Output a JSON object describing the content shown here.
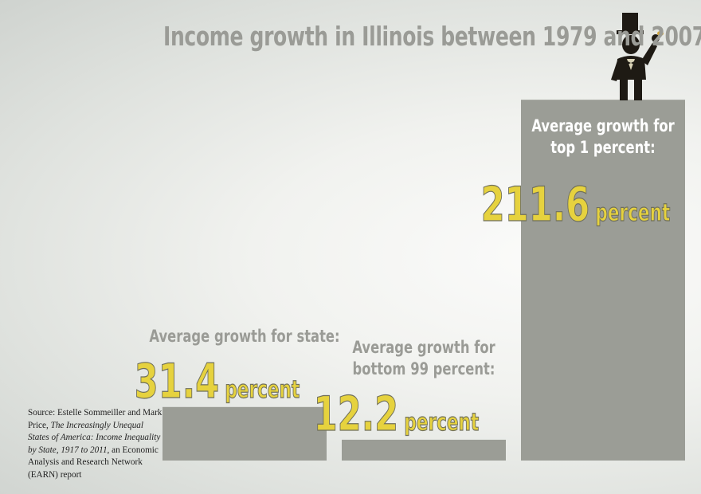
{
  "chart_data": {
    "type": "bar",
    "title": "Income growth in Illinois between 1979 and 2007",
    "categories": [
      "Average growth for state:",
      "Average growth for bottom 99 percent:",
      "Average growth for top 1 percent:"
    ],
    "values": [
      31.4,
      12.2,
      211.6
    ],
    "unit": "percent",
    "label_lines": [
      [
        "Average growth for state:"
      ],
      [
        "Average growth for",
        "bottom 99 percent:"
      ],
      [
        "Average growth for",
        "top 1 percent:"
      ]
    ],
    "value_labels": [
      "31.4",
      "12.2",
      "211.6"
    ],
    "grid": false,
    "legend": "none"
  },
  "colors": {
    "bar": "#9b9d96",
    "title": "#9a9b96",
    "value_text": "#e6d23e",
    "value_outline": "#6f6f5c",
    "label_on_background": "#9a9b96",
    "label_on_bar": "#ffffff"
  },
  "source": {
    "prefix": "Source: Estelle Sommeiller and Mark Price, ",
    "italic_1": "The Increasingly Unequal States of America: Income Inequality by State, 1917 to 2011",
    "suffix": ", an Economic Analysis and Research Network (EARN) report"
  },
  "illustration": "top-hat-man-icon"
}
